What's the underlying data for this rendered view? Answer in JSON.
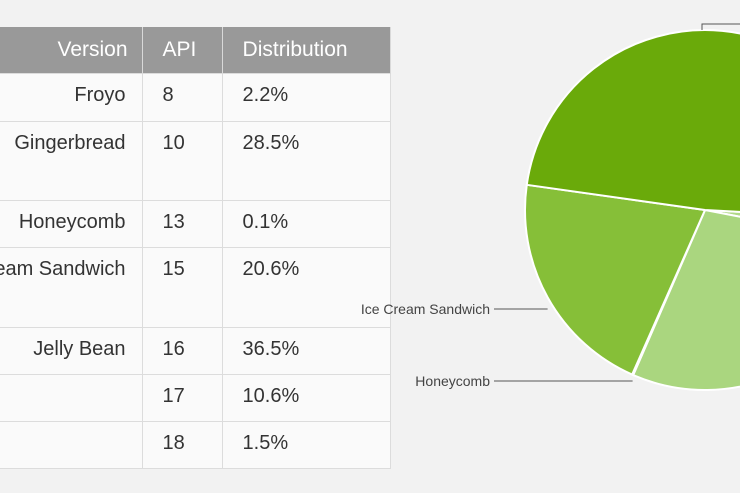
{
  "table": {
    "headers": {
      "version": "Version",
      "api": "API",
      "distribution": "Distribution"
    },
    "rows": [
      {
        "version": "Froyo",
        "api": "8",
        "distribution": "2.2%"
      },
      {
        "version": "Gingerbread",
        "api": "10",
        "distribution": "28.5%"
      },
      {
        "version": "Honeycomb",
        "api": "13",
        "distribution": "0.1%"
      },
      {
        "version": "Ice Cream Sandwich",
        "api": "15",
        "distribution": "20.6%"
      },
      {
        "version": "Jelly Bean",
        "api": "16",
        "distribution": "36.5%"
      },
      {
        "version": "",
        "api": "17",
        "distribution": "10.6%"
      },
      {
        "version": "",
        "api": "18",
        "distribution": "1.5%"
      }
    ]
  },
  "chart_data": {
    "type": "pie",
    "title": "",
    "categories": [
      "Froyo",
      "Gingerbread",
      "Honeycomb",
      "Ice Cream Sandwich",
      "Jelly Bean"
    ],
    "values": [
      2.2,
      28.5,
      0.1,
      20.6,
      48.6
    ],
    "labels": {
      "ics": "Ice Cream Sandwich",
      "honeycomb": "Honeycomb"
    },
    "colors": [
      "#b0d986",
      "#aad67f",
      "#a6d47a",
      "#86bf38",
      "#6aaa0a"
    ]
  }
}
